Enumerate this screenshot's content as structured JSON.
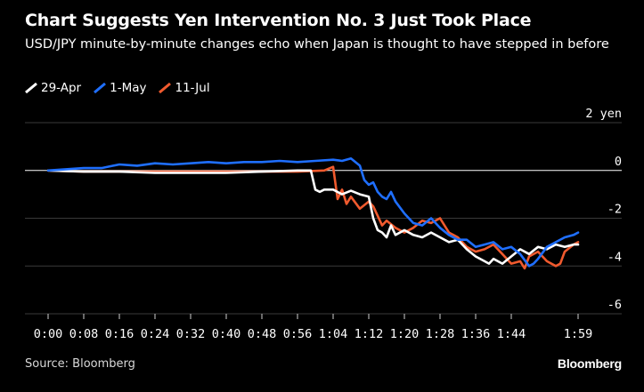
{
  "header": {
    "title": "Chart Suggests Yen Intervention No. 3 Just Took Place",
    "subtitle": "USD/JPY minute-by-minute changes echo when Japan is thought to have stepped in before"
  },
  "footer": {
    "source": "Source: Bloomberg",
    "brand": "Bloomberg"
  },
  "colors": {
    "background": "#000000",
    "29-Apr": "#ffffff",
    "1-May": "#1f6fff",
    "11-Jul": "#f05a2e"
  },
  "chart_data": {
    "type": "line",
    "title": "Chart Suggests Yen Intervention No. 3 Just Took Place",
    "subtitle": "USD/JPY minute-by-minute changes echo when Japan is thought to have stepped in before",
    "xlabel": "",
    "ylabel": "",
    "xlim": [
      0,
      119
    ],
    "ylim": [
      -6,
      2
    ],
    "x_ticks": [
      0,
      8,
      16,
      24,
      32,
      40,
      48,
      56,
      64,
      72,
      80,
      88,
      96,
      104,
      119
    ],
    "x_tick_labels": [
      "0:00",
      "0:08",
      "0:16",
      "0:24",
      "0:32",
      "0:40",
      "0:48",
      "0:56",
      "1:04",
      "1:12",
      "1:20",
      "1:28",
      "1:36",
      "1:44",
      "1:59"
    ],
    "y_ticks": [
      2,
      0,
      -2,
      -4,
      -6
    ],
    "y_tick_labels": [
      "2 yen",
      "0",
      "-2",
      "-4",
      "-6"
    ],
    "grid": "horizontal",
    "legend_position": "top-left",
    "series": [
      {
        "name": "29-Apr",
        "color": "#ffffff",
        "points": [
          [
            0,
            0
          ],
          [
            8,
            -0.05
          ],
          [
            16,
            -0.05
          ],
          [
            24,
            -0.1
          ],
          [
            32,
            -0.1
          ],
          [
            40,
            -0.1
          ],
          [
            48,
            -0.05
          ],
          [
            56,
            0
          ],
          [
            59,
            0
          ],
          [
            60,
            -0.8
          ],
          [
            61,
            -0.9
          ],
          [
            62,
            -0.8
          ],
          [
            64,
            -0.8
          ],
          [
            66,
            -1
          ],
          [
            68,
            -0.85
          ],
          [
            70,
            -1
          ],
          [
            72,
            -1.1
          ],
          [
            73,
            -2
          ],
          [
            74,
            -2.5
          ],
          [
            75,
            -2.6
          ],
          [
            76,
            -2.8
          ],
          [
            77,
            -2.3
          ],
          [
            78,
            -2.7
          ],
          [
            80,
            -2.5
          ],
          [
            82,
            -2.7
          ],
          [
            84,
            -2.8
          ],
          [
            86,
            -2.6
          ],
          [
            88,
            -2.8
          ],
          [
            90,
            -3
          ],
          [
            92,
            -2.9
          ],
          [
            94,
            -3.3
          ],
          [
            96,
            -3.6
          ],
          [
            98,
            -3.8
          ],
          [
            99,
            -3.9
          ],
          [
            100,
            -3.7
          ],
          [
            102,
            -3.9
          ],
          [
            104,
            -3.6
          ],
          [
            106,
            -3.3
          ],
          [
            108,
            -3.5
          ],
          [
            110,
            -3.2
          ],
          [
            112,
            -3.3
          ],
          [
            114,
            -3.1
          ],
          [
            116,
            -3.2
          ],
          [
            118,
            -3.1
          ],
          [
            119,
            -3.1
          ]
        ]
      },
      {
        "name": "1-May",
        "color": "#1f6fff",
        "points": [
          [
            0,
            0
          ],
          [
            4,
            0.05
          ],
          [
            8,
            0.1
          ],
          [
            12,
            0.1
          ],
          [
            16,
            0.25
          ],
          [
            20,
            0.2
          ],
          [
            24,
            0.3
          ],
          [
            28,
            0.25
          ],
          [
            32,
            0.3
          ],
          [
            36,
            0.35
          ],
          [
            40,
            0.3
          ],
          [
            44,
            0.35
          ],
          [
            48,
            0.35
          ],
          [
            52,
            0.4
          ],
          [
            56,
            0.35
          ],
          [
            60,
            0.4
          ],
          [
            64,
            0.45
          ],
          [
            66,
            0.4
          ],
          [
            68,
            0.5
          ],
          [
            70,
            0.2
          ],
          [
            71,
            -0.4
          ],
          [
            72,
            -0.6
          ],
          [
            73,
            -0.5
          ],
          [
            74,
            -0.9
          ],
          [
            75,
            -1.1
          ],
          [
            76,
            -1.2
          ],
          [
            77,
            -0.9
          ],
          [
            78,
            -1.3
          ],
          [
            80,
            -1.8
          ],
          [
            82,
            -2.2
          ],
          [
            84,
            -2.3
          ],
          [
            86,
            -2
          ],
          [
            88,
            -2.4
          ],
          [
            90,
            -2.7
          ],
          [
            92,
            -2.9
          ],
          [
            94,
            -2.9
          ],
          [
            96,
            -3.2
          ],
          [
            98,
            -3.1
          ],
          [
            100,
            -3
          ],
          [
            102,
            -3.3
          ],
          [
            104,
            -3.2
          ],
          [
            106,
            -3.5
          ],
          [
            108,
            -4
          ],
          [
            109,
            -3.9
          ],
          [
            110,
            -3.7
          ],
          [
            112,
            -3.2
          ],
          [
            114,
            -3
          ],
          [
            116,
            -2.8
          ],
          [
            118,
            -2.7
          ],
          [
            119,
            -2.6
          ]
        ]
      },
      {
        "name": "11-Jul",
        "color": "#f05a2e",
        "points": [
          [
            0,
            0
          ],
          [
            8,
            -0.05
          ],
          [
            16,
            -0.05
          ],
          [
            24,
            -0.05
          ],
          [
            32,
            -0.05
          ],
          [
            40,
            -0.05
          ],
          [
            48,
            -0.05
          ],
          [
            56,
            -0.05
          ],
          [
            62,
            0
          ],
          [
            64,
            0.15
          ],
          [
            65,
            -1.2
          ],
          [
            66,
            -0.8
          ],
          [
            67,
            -1.4
          ],
          [
            68,
            -1.1
          ],
          [
            70,
            -1.6
          ],
          [
            72,
            -1.3
          ],
          [
            73,
            -1.5
          ],
          [
            74,
            -1.9
          ],
          [
            75,
            -2.3
          ],
          [
            76,
            -2.1
          ],
          [
            78,
            -2.4
          ],
          [
            80,
            -2.6
          ],
          [
            82,
            -2.4
          ],
          [
            84,
            -2.1
          ],
          [
            86,
            -2.2
          ],
          [
            88,
            -2
          ],
          [
            90,
            -2.6
          ],
          [
            92,
            -2.8
          ],
          [
            94,
            -3.2
          ],
          [
            96,
            -3.4
          ],
          [
            98,
            -3.3
          ],
          [
            100,
            -3.1
          ],
          [
            102,
            -3.5
          ],
          [
            104,
            -3.9
          ],
          [
            106,
            -3.8
          ],
          [
            107,
            -4.1
          ],
          [
            108,
            -3.6
          ],
          [
            110,
            -3.4
          ],
          [
            112,
            -3.8
          ],
          [
            114,
            -4
          ],
          [
            115,
            -3.9
          ],
          [
            116,
            -3.4
          ],
          [
            118,
            -3.1
          ],
          [
            119,
            -3
          ]
        ]
      }
    ]
  }
}
